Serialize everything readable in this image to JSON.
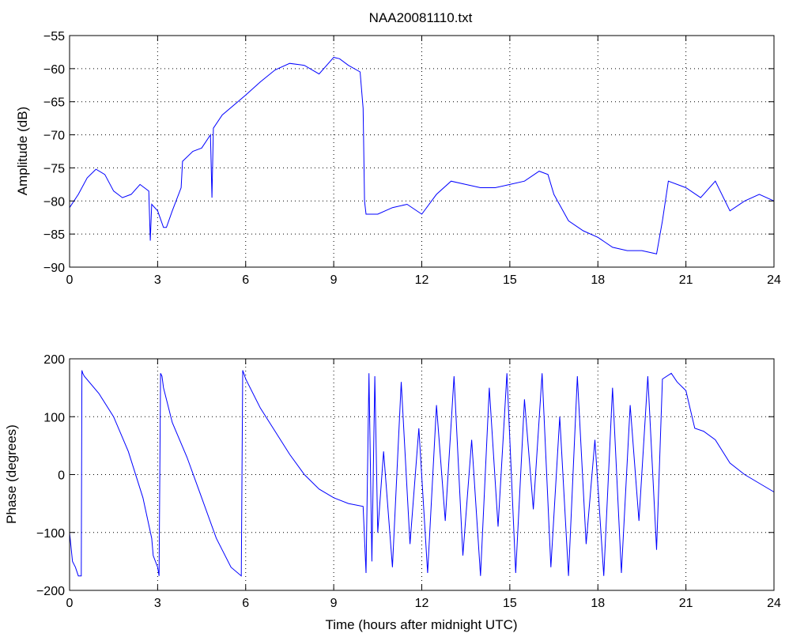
{
  "figure": {
    "title": "NAA20081110.txt"
  },
  "chart_data": [
    {
      "type": "line",
      "name": "amplitude",
      "title": "NAA20081110.txt",
      "xlabel": "",
      "ylabel": "Amplitude (dB)",
      "xlim": [
        0,
        24
      ],
      "ylim": [
        -90,
        -55
      ],
      "xticks": [
        "0",
        "3",
        "6",
        "9",
        "12",
        "15",
        "18",
        "21",
        "24"
      ],
      "yticks": [
        "-55",
        "-60",
        "-65",
        "-70",
        "-75",
        "-80",
        "-85",
        "-90"
      ],
      "grid": true,
      "line_color": "#0000ff",
      "x": [
        0,
        0.3,
        0.6,
        0.9,
        1.2,
        1.5,
        1.8,
        2.1,
        2.4,
        2.7,
        2.75,
        2.8,
        3.0,
        3.2,
        3.3,
        3.5,
        3.8,
        3.85,
        4.2,
        4.5,
        4.8,
        4.85,
        4.9,
        5.2,
        6.0,
        6.5,
        7.0,
        7.5,
        8.0,
        8.5,
        9.0,
        9.2,
        9.5,
        9.9,
        10.0,
        10.05,
        10.1,
        10.5,
        11.0,
        11.5,
        12.0,
        12.5,
        13.0,
        13.5,
        14.0,
        14.5,
        15.0,
        15.5,
        16.0,
        16.3,
        16.5,
        17.0,
        17.5,
        18.0,
        18.5,
        19.0,
        19.5,
        20.0,
        20.2,
        20.4,
        21.0,
        21.5,
        22.0,
        22.5,
        23.0,
        23.5,
        24.0
      ],
      "y": [
        -81,
        -79,
        -76.5,
        -75.2,
        -76,
        -78.5,
        -79.5,
        -79,
        -77.5,
        -78.5,
        -86,
        -80.5,
        -81.5,
        -84,
        -84,
        -81.5,
        -78,
        -74,
        -72.5,
        -72,
        -70,
        -79.5,
        -69,
        -67,
        -64,
        -62,
        -60.2,
        -59.2,
        -59.5,
        -60.8,
        -58.3,
        -58.5,
        -59.5,
        -60.5,
        -66,
        -80,
        -82,
        -82,
        -81,
        -80.5,
        -82,
        -79,
        -77,
        -77.5,
        -78,
        -78,
        -77.5,
        -77,
        -75.5,
        -76,
        -79,
        -83,
        -84.5,
        -85.5,
        -87,
        -87.5,
        -87.5,
        -88,
        -83,
        -77,
        -78,
        -79.5,
        -77,
        -81.5,
        -80,
        -79,
        -80
      ]
    },
    {
      "type": "line",
      "name": "phase",
      "title": "",
      "xlabel": "Time (hours after midnight UTC)",
      "ylabel": "Phase (degrees)",
      "xlim": [
        0,
        24
      ],
      "ylim": [
        -200,
        200
      ],
      "xticks": [
        "0",
        "3",
        "6",
        "9",
        "12",
        "15",
        "18",
        "21",
        "24"
      ],
      "yticks": [
        "200",
        "100",
        "0",
        "-100",
        "-200"
      ],
      "grid": true,
      "line_color": "#0000ff",
      "x": [
        0,
        0.1,
        0.2,
        0.3,
        0.4,
        0.42,
        0.45,
        0.5,
        1.0,
        1.5,
        2.0,
        2.5,
        2.8,
        2.85,
        3.0,
        3.05,
        3.1,
        3.15,
        3.2,
        3.5,
        4.0,
        4.5,
        5.0,
        5.5,
        5.85,
        5.9,
        6.0,
        6.5,
        7.0,
        7.5,
        8.0,
        8.5,
        9.0,
        9.5,
        10.0,
        10.1,
        10.2,
        10.3,
        10.4,
        10.5,
        10.7,
        11.0,
        11.3,
        11.6,
        11.9,
        12.2,
        12.5,
        12.8,
        13.1,
        13.4,
        13.7,
        14.0,
        14.3,
        14.6,
        14.9,
        15.2,
        15.5,
        15.8,
        16.1,
        16.4,
        16.7,
        17.0,
        17.3,
        17.6,
        17.9,
        18.2,
        18.5,
        18.8,
        19.1,
        19.4,
        19.7,
        20.0,
        20.2,
        20.5,
        20.7,
        20.9,
        21.0,
        21.3,
        21.6,
        22.0,
        22.5,
        23.0,
        23.5,
        24.0
      ],
      "y": [
        -100,
        -150,
        -160,
        -175,
        -175,
        180,
        175,
        170,
        140,
        100,
        40,
        -40,
        -110,
        -140,
        -160,
        -175,
        175,
        170,
        150,
        90,
        30,
        -40,
        -110,
        -160,
        -175,
        180,
        165,
        115,
        75,
        35,
        0,
        -25,
        -40,
        -50,
        -55,
        -170,
        175,
        -150,
        170,
        -100,
        40,
        -160,
        160,
        -120,
        80,
        -170,
        120,
        -80,
        170,
        -140,
        60,
        -175,
        150,
        -90,
        175,
        -170,
        130,
        -60,
        175,
        -160,
        100,
        -175,
        170,
        -120,
        60,
        -175,
        150,
        -170,
        120,
        -80,
        170,
        -130,
        165,
        175,
        160,
        150,
        145,
        80,
        75,
        60,
        20,
        0,
        -15,
        -30
      ]
    }
  ]
}
